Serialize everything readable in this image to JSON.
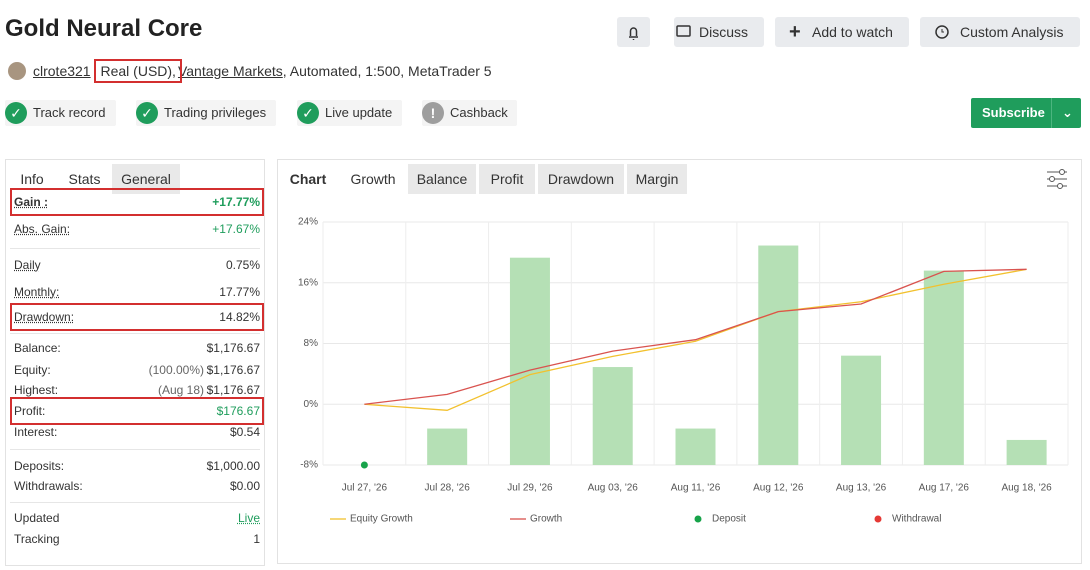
{
  "header": {
    "title": "Gold Neural Core",
    "buttons": [
      "Discuss",
      "Add to watch",
      "Custom Analysis"
    ],
    "user": "clrote321",
    "account": "Real (USD),",
    "broker": "Vantage Markets",
    "details": ", Automated, 1:500, MetaTrader 5",
    "badges": [
      "Track record",
      "Trading privileges",
      "Live update",
      "Cashback"
    ],
    "subscribe": "Subscribe"
  },
  "stats_tabs": [
    "Info",
    "Stats",
    "General"
  ],
  "stats": [
    [
      {
        "label": "Gain :",
        "value": "+17.77%"
      },
      {
        "label": "Abs. Gain:",
        "value": "+17.67%"
      }
    ],
    [
      {
        "label": "Daily",
        "value": "0.75%"
      },
      {
        "label": "Monthly:",
        "value": "17.77%"
      },
      {
        "label": "Drawdown:",
        "value": "14.82%"
      }
    ],
    [
      {
        "label": "Balance:",
        "value": "$1,176.67"
      },
      {
        "label": "Equity:",
        "note": "(100.00%)",
        "value": "$1,176.67"
      },
      {
        "label": "Highest:",
        "note": "(Aug 18)",
        "value": "$1,176.67"
      },
      {
        "label": "Profit:",
        "value": "$176.67"
      },
      {
        "label": "Interest:",
        "value": "$0.54"
      }
    ],
    [
      {
        "label": "Deposits:",
        "value": "$1,000.00"
      },
      {
        "label": "Withdrawals:",
        "value": "$0.00"
      }
    ],
    [
      {
        "label": "Updated",
        "value": "Live"
      },
      {
        "label": "Tracking",
        "value": "1"
      }
    ]
  ],
  "chart_tabs": [
    "Chart",
    "Growth",
    "Balance",
    "Profit",
    "Drawdown",
    "Margin"
  ],
  "chart": {
    "type": "bar-line",
    "categories": [
      "Jul 27, '26",
      "Jul 28, '26",
      "Jul 29, '26",
      "Aug 03, '26",
      "Aug 11, '26",
      "Aug 12, '26",
      "Aug 13, '26",
      "Aug 17, '26",
      "Aug 18, '26"
    ],
    "ylim": [
      -8,
      24
    ],
    "yticks": [
      {
        "value": -8,
        "label": "-8%"
      },
      {
        "value": 0,
        "label": "0%"
      },
      {
        "value": 8,
        "label": "8%"
      },
      {
        "value": 16,
        "label": "16%"
      },
      {
        "value": 24,
        "label": "24%"
      }
    ],
    "bars": {
      "color": "#b5e0b5",
      "values": [
        null,
        -3.2,
        19.3,
        4.9,
        -3.2,
        20.9,
        6.4,
        17.6,
        -4.7
      ]
    },
    "series": [
      {
        "name": "Equity Growth",
        "color": "#f2c12e",
        "kind": "line",
        "values": [
          0,
          -0.8,
          3.9,
          6.3,
          8.3,
          12.2,
          13.5,
          15.8,
          17.77
        ]
      },
      {
        "name": "Growth",
        "color": "#d9534f",
        "kind": "line",
        "values": [
          0,
          1.3,
          4.5,
          7.0,
          8.5,
          12.2,
          13.2,
          17.5,
          17.77
        ]
      },
      {
        "name": "Deposit",
        "color": "#17a34a",
        "kind": "point",
        "values": [
          -8,
          null,
          null,
          null,
          null,
          null,
          null,
          null,
          null
        ]
      },
      {
        "name": "Withdrawal",
        "color": "#e53935",
        "kind": "point",
        "values": [
          null,
          null,
          null,
          null,
          null,
          null,
          null,
          null,
          null
        ]
      }
    ],
    "grid": true
  }
}
